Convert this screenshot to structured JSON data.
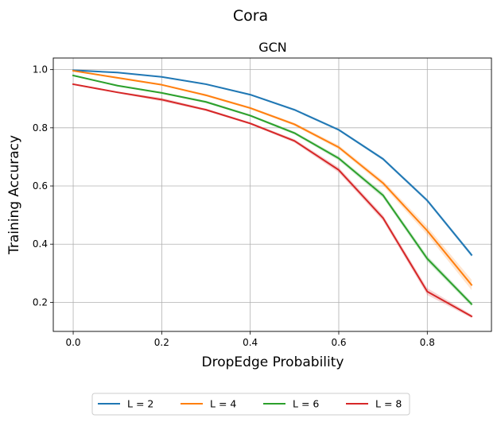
{
  "figure": {
    "suptitle": "Cora"
  },
  "chart_data": {
    "type": "line",
    "title": "GCN",
    "xlabel": "DropEdge Probability",
    "ylabel": "Training Accuracy",
    "xlim": [
      -0.045,
      0.945
    ],
    "ylim": [
      0.1,
      1.04
    ],
    "xticks": [
      0.0,
      0.2,
      0.4,
      0.6,
      0.8
    ],
    "xtick_labels": [
      "0.0",
      "0.2",
      "0.4",
      "0.6",
      "0.8"
    ],
    "yticks": [
      0.2,
      0.4,
      0.6,
      0.8,
      1.0
    ],
    "ytick_labels": [
      "0.2",
      "0.4",
      "0.6",
      "0.8",
      "1.0"
    ],
    "grid": true,
    "legend_position": "bottom-center, outside the plot, single row",
    "x": [
      0.0,
      0.1,
      0.2,
      0.3,
      0.4,
      0.5,
      0.6,
      0.7,
      0.8,
      0.9
    ],
    "series": [
      {
        "name": "L = 2",
        "color": "#1f77b4",
        "values": [
          0.998,
          0.99,
          0.975,
          0.95,
          0.914,
          0.862,
          0.793,
          0.693,
          0.55,
          0.363
        ],
        "band": [
          0.002,
          0.002,
          0.002,
          0.003,
          0.003,
          0.004,
          0.004,
          0.005,
          0.006,
          0.007
        ]
      },
      {
        "name": "L = 4",
        "color": "#ff7f0e",
        "values": [
          0.996,
          0.972,
          0.948,
          0.912,
          0.868,
          0.812,
          0.733,
          0.61,
          0.446,
          0.26
        ],
        "band": [
          0.002,
          0.003,
          0.003,
          0.004,
          0.004,
          0.005,
          0.007,
          0.009,
          0.014,
          0.018
        ]
      },
      {
        "name": "L = 6",
        "color": "#2ca02c",
        "values": [
          0.98,
          0.945,
          0.92,
          0.889,
          0.842,
          0.782,
          0.695,
          0.568,
          0.35,
          0.194
        ],
        "band": [
          0.002,
          0.003,
          0.003,
          0.004,
          0.004,
          0.005,
          0.007,
          0.009,
          0.01,
          0.008
        ]
      },
      {
        "name": "L = 8",
        "color": "#d62728",
        "values": [
          0.95,
          0.922,
          0.897,
          0.862,
          0.815,
          0.755,
          0.655,
          0.49,
          0.237,
          0.152
        ],
        "band": [
          0.002,
          0.003,
          0.006,
          0.004,
          0.004,
          0.006,
          0.009,
          0.01,
          0.012,
          0.006
        ]
      }
    ]
  }
}
